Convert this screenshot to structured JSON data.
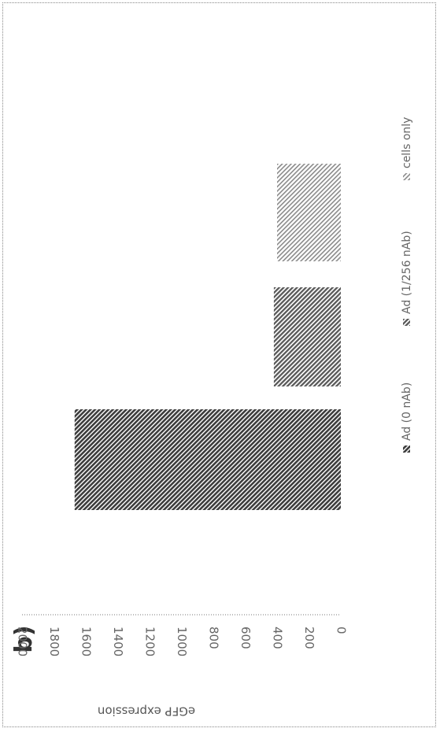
{
  "chart_data": {
    "type": "bar",
    "panel_label": "b)",
    "ylabel": "eGFP expression",
    "xlabel": "",
    "ylim": [
      0,
      2000
    ],
    "yticks": [
      "0",
      "200",
      "400",
      "600",
      "800",
      "1000",
      "1200",
      "1400",
      "1600",
      "1800",
      "2000"
    ],
    "grid": false,
    "legend_position": "bottom",
    "series": [
      {
        "name": "Ad (0 nAb)",
        "value": 1670,
        "color": "#505050"
      },
      {
        "name": "Ad (1/256 nAb)",
        "value": 420,
        "color": "#6e6e6e"
      },
      {
        "name": "cells only",
        "value": 400,
        "color": "#bdbdbd"
      }
    ]
  }
}
